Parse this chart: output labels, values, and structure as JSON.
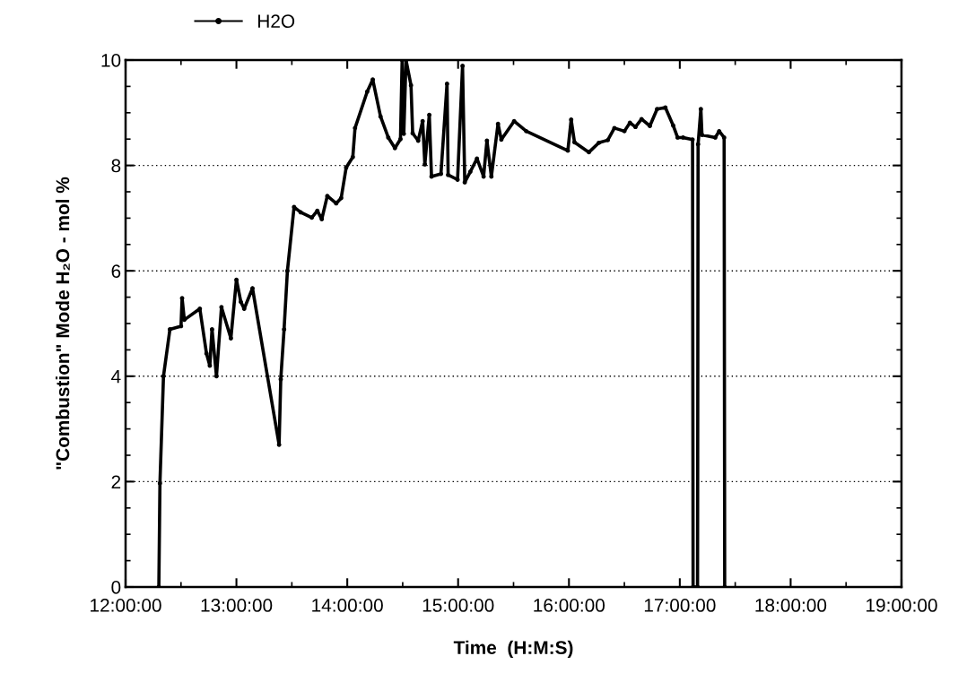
{
  "chart_data": {
    "type": "line",
    "xlabel": "Time  (H:M:S)",
    "ylabel": "\"Combustion\" Mode H₂O - mol %",
    "xlim": [
      12,
      19
    ],
    "xticks": [
      {
        "value": 12,
        "label": "12:00:00"
      },
      {
        "value": 13,
        "label": "13:00:00"
      },
      {
        "value": 14,
        "label": "14:00:00"
      },
      {
        "value": 15,
        "label": "15:00:00"
      },
      {
        "value": 16,
        "label": "16:00:00"
      },
      {
        "value": 17,
        "label": "17:00:00"
      },
      {
        "value": 18,
        "label": "18:00:00"
      },
      {
        "value": 19,
        "label": "19:00:00"
      }
    ],
    "ylim": [
      0,
      10
    ],
    "yticks": [
      0,
      2,
      4,
      6,
      8,
      10
    ],
    "grid": "y",
    "legend": "top left",
    "marker": "circle",
    "line_style": "solid",
    "series": [
      {
        "name": "H2O",
        "color": "#000000",
        "x": [
          12.3,
          12.31,
          12.342,
          12.4,
          12.5,
          12.51,
          12.53,
          12.67,
          12.73,
          12.76,
          12.78,
          12.82,
          12.865,
          12.95,
          13.0,
          13.04,
          13.07,
          13.145,
          13.385,
          13.4,
          13.43,
          13.46,
          13.52,
          13.58,
          13.68,
          13.73,
          13.77,
          13.82,
          13.9,
          13.945,
          13.99,
          14.05,
          14.07,
          14.18,
          14.23,
          14.3,
          14.37,
          14.43,
          14.48,
          14.495,
          14.51,
          14.53,
          14.575,
          14.59,
          14.64,
          14.68,
          14.7,
          14.74,
          14.76,
          14.845,
          14.9,
          14.91,
          14.995,
          15.04,
          15.06,
          15.11,
          15.17,
          15.23,
          15.26,
          15.3,
          15.36,
          15.39,
          15.505,
          15.615,
          15.99,
          16.02,
          16.05,
          16.18,
          16.27,
          16.35,
          16.41,
          16.5,
          16.55,
          16.6,
          16.655,
          16.73,
          16.795,
          16.87,
          16.94,
          16.98,
          17.03,
          17.115,
          17.12,
          17.16,
          17.165,
          17.19,
          17.2,
          17.32,
          17.355,
          17.4,
          17.405
        ],
        "values": [
          0,
          1.97,
          4.0,
          4.89,
          4.95,
          5.48,
          5.07,
          5.28,
          4.43,
          4.2,
          4.89,
          4.0,
          5.31,
          4.72,
          5.83,
          5.41,
          5.28,
          5.67,
          2.7,
          3.94,
          4.89,
          6.0,
          7.21,
          7.11,
          7.01,
          7.14,
          6.98,
          7.42,
          7.28,
          7.38,
          7.96,
          8.16,
          8.71,
          9.4,
          9.63,
          8.93,
          8.53,
          8.33,
          8.5,
          10,
          8.6,
          10,
          9.52,
          8.61,
          8.47,
          8.84,
          8.02,
          8.96,
          7.79,
          7.84,
          9.55,
          7.82,
          7.73,
          9.89,
          7.68,
          7.88,
          8.13,
          7.79,
          8.47,
          7.79,
          8.79,
          8.49,
          8.84,
          8.65,
          8.28,
          8.87,
          8.44,
          8.25,
          8.43,
          8.48,
          8.71,
          8.65,
          8.81,
          8.73,
          8.88,
          8.75,
          9.07,
          9.1,
          8.76,
          8.53,
          8.53,
          8.49,
          0,
          0,
          8.4,
          9.07,
          8.58,
          8.53,
          8.65,
          8.53,
          0
        ]
      }
    ]
  }
}
